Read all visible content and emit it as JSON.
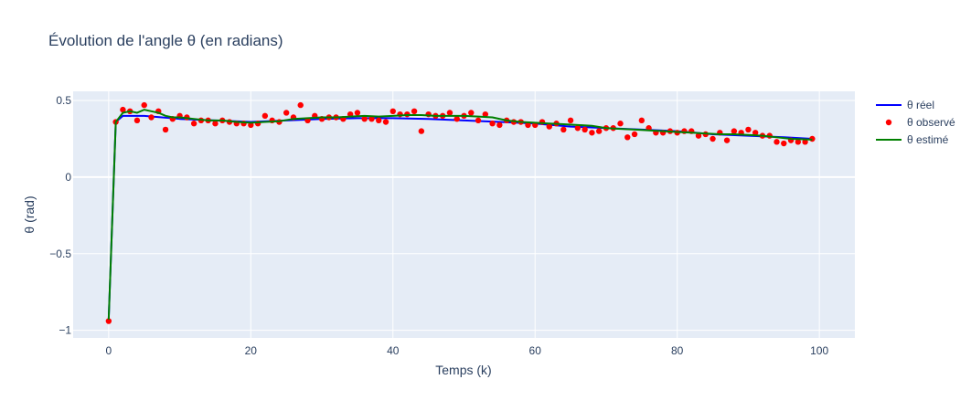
{
  "chart_data": {
    "type": "line",
    "title": "Évolution de l'angle θ (en radians)",
    "xlabel": "Temps (k)",
    "ylabel": "θ (rad)",
    "xlim": [
      -5,
      105
    ],
    "ylim": [
      -1.05,
      0.56
    ],
    "x_ticks": [
      0,
      20,
      40,
      60,
      80,
      100
    ],
    "x_tick_labels": [
      "0",
      "20",
      "40",
      "60",
      "80",
      "100"
    ],
    "y_ticks": [
      -1,
      -0.5,
      0,
      0.5
    ],
    "y_tick_labels": [
      "−1",
      "−0.5",
      "0",
      "0.5"
    ],
    "grid": true,
    "legend_position": "top-right",
    "colors": {
      "reel": "#0000ff",
      "observe": "#ff0000",
      "estime": "#008000",
      "plot_bg": "#e5ecf6"
    },
    "series": [
      {
        "name": "θ réel",
        "mode": "line",
        "x": [
          0,
          1,
          2,
          5,
          10,
          15,
          20,
          25,
          30,
          35,
          40,
          45,
          50,
          55,
          60,
          65,
          70,
          75,
          80,
          85,
          90,
          95,
          99
        ],
        "y": [
          -0.93,
          0.36,
          0.4,
          0.4,
          0.38,
          0.37,
          0.36,
          0.37,
          0.38,
          0.385,
          0.385,
          0.38,
          0.37,
          0.36,
          0.35,
          0.33,
          0.32,
          0.31,
          0.3,
          0.28,
          0.27,
          0.26,
          0.25
        ]
      },
      {
        "name": "θ observé",
        "mode": "markers",
        "x": [
          0,
          1,
          2,
          3,
          4,
          5,
          6,
          7,
          8,
          9,
          10,
          11,
          12,
          13,
          14,
          15,
          16,
          17,
          18,
          19,
          20,
          21,
          22,
          23,
          24,
          25,
          26,
          27,
          28,
          29,
          30,
          31,
          32,
          33,
          34,
          35,
          36,
          37,
          38,
          39,
          40,
          41,
          42,
          43,
          44,
          45,
          46,
          47,
          48,
          49,
          50,
          51,
          52,
          53,
          54,
          55,
          56,
          57,
          58,
          59,
          60,
          61,
          62,
          63,
          64,
          65,
          66,
          67,
          68,
          69,
          70,
          71,
          72,
          73,
          74,
          75,
          76,
          77,
          78,
          79,
          80,
          81,
          82,
          83,
          84,
          85,
          86,
          87,
          88,
          89,
          90,
          91,
          92,
          93,
          94,
          95,
          96,
          97,
          98,
          99
        ],
        "y": [
          -0.94,
          0.36,
          0.44,
          0.43,
          0.37,
          0.47,
          0.39,
          0.43,
          0.31,
          0.38,
          0.4,
          0.39,
          0.35,
          0.37,
          0.37,
          0.35,
          0.37,
          0.36,
          0.35,
          0.35,
          0.34,
          0.35,
          0.4,
          0.37,
          0.36,
          0.42,
          0.39,
          0.47,
          0.37,
          0.4,
          0.38,
          0.39,
          0.39,
          0.38,
          0.41,
          0.42,
          0.38,
          0.38,
          0.37,
          0.36,
          0.43,
          0.41,
          0.41,
          0.43,
          0.3,
          0.41,
          0.4,
          0.4,
          0.42,
          0.38,
          0.4,
          0.42,
          0.37,
          0.41,
          0.35,
          0.34,
          0.37,
          0.36,
          0.36,
          0.34,
          0.34,
          0.36,
          0.33,
          0.35,
          0.31,
          0.37,
          0.32,
          0.31,
          0.29,
          0.3,
          0.32,
          0.32,
          0.35,
          0.26,
          0.28,
          0.37,
          0.32,
          0.29,
          0.29,
          0.3,
          0.29,
          0.3,
          0.3,
          0.27,
          0.28,
          0.25,
          0.29,
          0.24,
          0.3,
          0.29,
          0.31,
          0.29,
          0.27,
          0.27,
          0.23,
          0.22,
          0.24,
          0.23,
          0.23,
          0.25
        ]
      },
      {
        "name": "θ estimé",
        "mode": "line",
        "x": [
          0,
          1,
          2,
          3,
          4,
          5,
          6,
          7,
          8,
          9,
          10,
          12,
          14,
          16,
          18,
          20,
          22,
          24,
          26,
          28,
          30,
          32,
          34,
          36,
          38,
          40,
          42,
          44,
          46,
          48,
          50,
          52,
          54,
          56,
          58,
          60,
          62,
          64,
          66,
          68,
          70,
          72,
          74,
          76,
          78,
          80,
          82,
          84,
          86,
          88,
          90,
          92,
          94,
          96,
          99
        ],
        "y": [
          -0.93,
          0.36,
          0.42,
          0.43,
          0.42,
          0.44,
          0.43,
          0.42,
          0.4,
          0.39,
          0.39,
          0.38,
          0.37,
          0.37,
          0.36,
          0.355,
          0.36,
          0.365,
          0.38,
          0.385,
          0.39,
          0.39,
          0.395,
          0.4,
          0.395,
          0.4,
          0.405,
          0.405,
          0.4,
          0.4,
          0.4,
          0.395,
          0.39,
          0.37,
          0.36,
          0.355,
          0.35,
          0.345,
          0.34,
          0.335,
          0.32,
          0.315,
          0.31,
          0.305,
          0.3,
          0.295,
          0.29,
          0.285,
          0.28,
          0.28,
          0.275,
          0.27,
          0.26,
          0.25,
          0.245
        ]
      }
    ]
  }
}
